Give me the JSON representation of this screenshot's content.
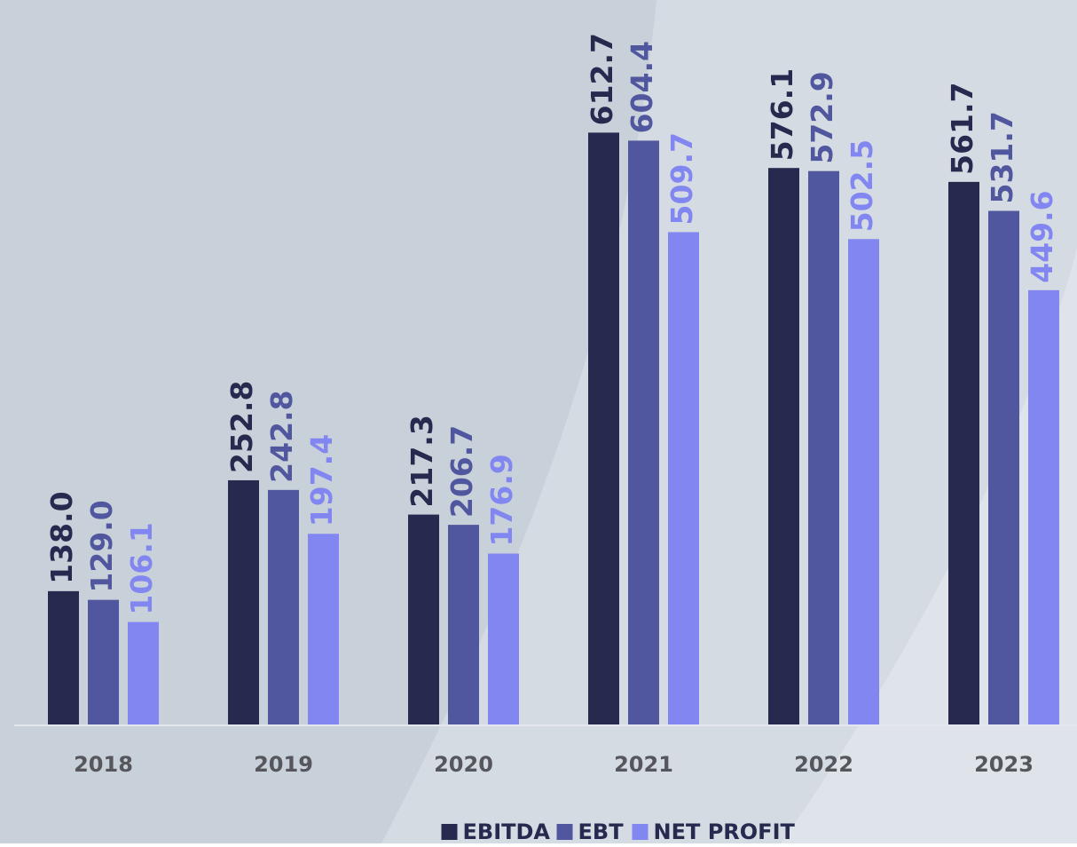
{
  "chart_data": {
    "type": "bar",
    "categories": [
      "2018",
      "2019",
      "2020",
      "2021",
      "2022",
      "2023"
    ],
    "series": [
      {
        "name": "EBITDA",
        "color": "#272a4f",
        "values": [
          138.0,
          252.8,
          217.3,
          612.7,
          576.1,
          561.7
        ],
        "value_labels": [
          "138.0",
          "252.8",
          "217.3",
          "612.7",
          "576.1",
          "561.7"
        ]
      },
      {
        "name": "EBT",
        "color": "#51579e",
        "values": [
          129.0,
          242.8,
          206.7,
          604.4,
          572.9,
          531.7
        ],
        "value_labels": [
          "129.0",
          "242.8",
          "206.7",
          "604.4",
          "572.9",
          "531.7"
        ]
      },
      {
        "name": "NET PROFIT",
        "color": "#8286f0",
        "values": [
          106.1,
          197.4,
          176.9,
          509.7,
          502.5,
          449.6
        ],
        "value_labels": [
          "106.1",
          "197.4",
          "176.9",
          "509.7",
          "502.5",
          "449.6"
        ]
      }
    ],
    "ylim": [
      0,
      750
    ],
    "legend": "bottom"
  }
}
